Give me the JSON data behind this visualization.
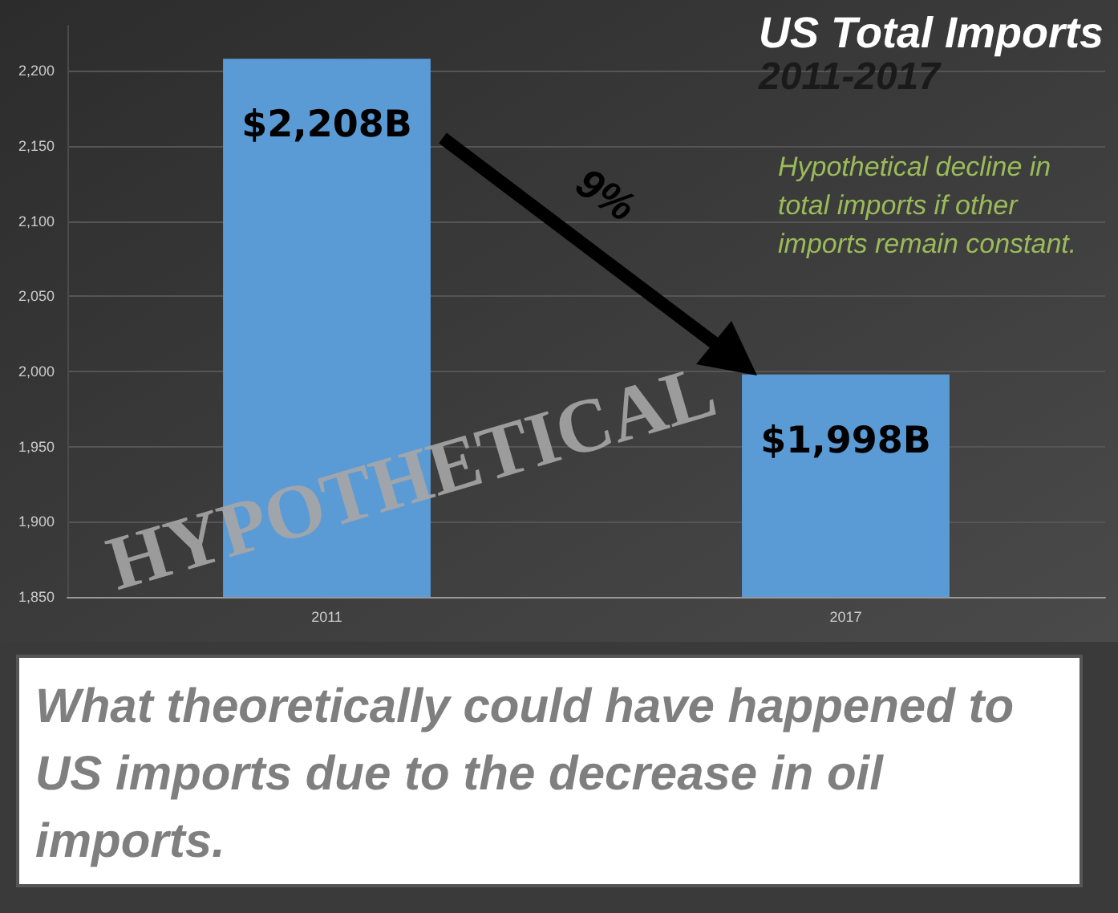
{
  "chart_data": {
    "type": "bar",
    "title": "US Total Imports",
    "subtitle": "2011-2017",
    "categories": [
      "2011",
      "2017"
    ],
    "values": [
      2208,
      1998
    ],
    "value_labels": [
      "$2,208B",
      "$1,998B"
    ],
    "color": "#5b9bd5",
    "ylim": [
      1850,
      2230
    ],
    "yticks": [
      {
        "value": 1850,
        "label": "1,850"
      },
      {
        "value": 1900,
        "label": "1,900"
      },
      {
        "value": 1950,
        "label": "1,950"
      },
      {
        "value": 2000,
        "label": "2,000"
      },
      {
        "value": 2050,
        "label": "2,050"
      },
      {
        "value": 2100,
        "label": "2,100"
      },
      {
        "value": 2150,
        "label": "2,150"
      },
      {
        "value": 2200,
        "label": "2,200"
      }
    ],
    "grid": "y",
    "annotations": [
      "9%",
      "Hypothetical decline in total imports if other imports remain constant.",
      "HYPOTHETICAL",
      "What theoretically could have happened to US imports due to the decrease in oil imports."
    ]
  }
}
